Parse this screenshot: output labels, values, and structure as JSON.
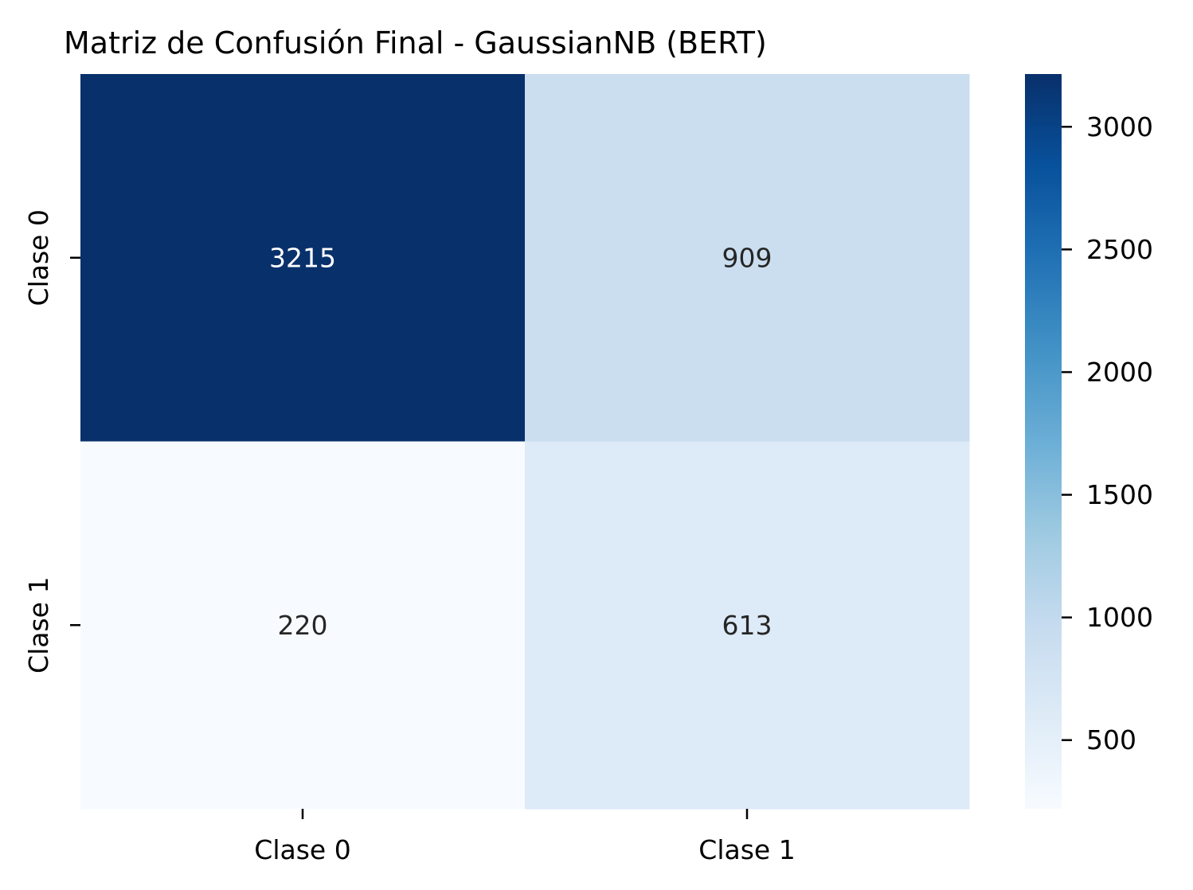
{
  "chart_data": {
    "type": "heatmap",
    "title": "Matriz de Confusión Final - GaussianNB (BERT)",
    "xlabel": "",
    "ylabel": "",
    "x_categories": [
      "Clase 0",
      "Clase 1"
    ],
    "y_categories": [
      "Clase 0",
      "Clase 1"
    ],
    "values": [
      [
        3215,
        909
      ],
      [
        220,
        613
      ]
    ],
    "colormap": "Blues",
    "colorbar": {
      "range": [
        220,
        3215
      ],
      "ticks": [
        "500",
        "1000",
        "1500",
        "2000",
        "2500",
        "3000"
      ],
      "tick_values": [
        500,
        1000,
        1500,
        2000,
        2500,
        3000
      ]
    },
    "colors": {
      "dark_text": "#262626",
      "light_text": "#ffffff"
    }
  }
}
